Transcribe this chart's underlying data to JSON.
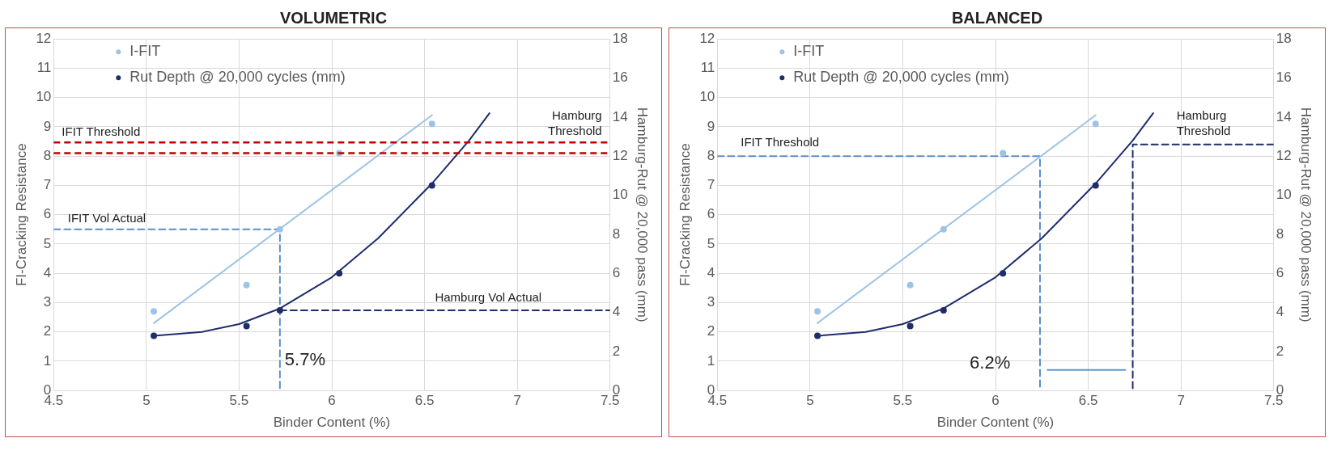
{
  "chart_data": [
    {
      "type": "scatter",
      "title": "VOLUMETRIC",
      "xlabel": "Binder Content (%)",
      "ylabel": "FI-Cracking Resistance",
      "y2label": "Hamburg-Rut @ 20,000 pass (mm)",
      "xlim": [
        4.5,
        7.5
      ],
      "xticks": [
        4.5,
        5,
        5.5,
        6,
        6.5,
        7,
        7.5
      ],
      "ylim": [
        0,
        12
      ],
      "yticks": [
        0,
        1,
        2,
        3,
        4,
        5,
        6,
        7,
        8,
        9,
        10,
        11,
        12
      ],
      "y2lim": [
        0,
        18
      ],
      "y2ticks": [
        0,
        2,
        4,
        6,
        8,
        10,
        12,
        14,
        16,
        18
      ],
      "grid": true,
      "legend": "top left",
      "ref_lines": [
        {
          "axis": "y",
          "value": 8.1,
          "label": "IFIT Threshold",
          "color": "#c00000",
          "line_style": "dashed"
        },
        {
          "axis": "y2",
          "value": 12.7,
          "label": "Hamburg Threshold",
          "color": "#c00000",
          "line_style": "dashed"
        }
      ],
      "annotations": [
        {
          "text": "IFIT Vol Actual",
          "x": 4.55,
          "y": 5.5
        },
        {
          "text": "Hamburg Vol Actual",
          "x": 6.53,
          "y": 2.8
        },
        {
          "text": "5.7%",
          "x": 5.72,
          "y": 0.6
        }
      ],
      "series": [
        {
          "name": "I-FIT",
          "color": "#9dc3e6",
          "marker": "circle",
          "x": [
            5.04,
            5.54,
            5.72,
            6.04,
            6.54
          ],
          "values": [
            2.7,
            3.6,
            5.5,
            8.1,
            9.1
          ]
        },
        {
          "name": "Rut Depth @ 20,000 cycles (mm)",
          "color": "#1f2d6b",
          "marker": "circle",
          "axis": "y2",
          "x": [
            5.04,
            5.54,
            5.72,
            6.04,
            6.54
          ],
          "values": [
            2.8,
            3.3,
            4.1,
            6.0,
            10.5
          ]
        },
        {
          "type": "line",
          "color": "#9dc3e6",
          "marker": "none",
          "x": [
            5.04,
            6.54
          ],
          "values": [
            2.3,
            9.4
          ]
        },
        {
          "type": "line",
          "color": "#1f2d6b",
          "marker": "none",
          "axis": "y2",
          "x": [
            5.04,
            5.3,
            5.5,
            5.72,
            6.0,
            6.25,
            6.54,
            6.74,
            6.85
          ],
          "values": [
            2.8,
            3.0,
            3.4,
            4.2,
            5.8,
            7.8,
            10.6,
            12.8,
            14.2
          ]
        },
        {
          "type": "line",
          "color": "#5b8fc7",
          "marker": "none",
          "line_style": "dashed",
          "x": [
            4.5,
            5.72,
            5.72
          ],
          "values": [
            5.5,
            5.5,
            0
          ]
        },
        {
          "type": "line",
          "color": "#1f2d6b",
          "marker": "none",
          "line_style": "dashed",
          "axis": "y2",
          "x": [
            5.72,
            7.5
          ],
          "values": [
            4.1,
            4.1
          ]
        }
      ]
    },
    {
      "type": "scatter",
      "title": "BALANCED",
      "xlabel": "Binder Content (%)",
      "ylabel": "FI-Cracking Resistance",
      "y2label": "Hamburg-Rut @ 20,000 pass (mm)",
      "xlim": [
        4.5,
        7.5
      ],
      "xticks": [
        4.5,
        5,
        5.5,
        6,
        6.5,
        7,
        7.5
      ],
      "ylim": [
        0,
        12
      ],
      "yticks": [
        0,
        1,
        2,
        3,
        4,
        5,
        6,
        7,
        8,
        9,
        10,
        11,
        12
      ],
      "y2lim": [
        0,
        18
      ],
      "y2ticks": [
        0,
        2,
        4,
        6,
        8,
        10,
        12,
        14,
        16,
        18
      ],
      "grid": true,
      "legend": "top left",
      "annotations": [
        {
          "text": "IFIT Threshold",
          "x": 4.6,
          "y": 8.1
        },
        {
          "text": "Hamburg Threshold",
          "x": 6.95,
          "y": 8.5
        },
        "6.2%"
      ],
      "series": [
        {
          "name": "I-FIT",
          "color": "#9dc3e6",
          "marker": "circle",
          "x": [
            5.04,
            5.54,
            5.72,
            6.04,
            6.54
          ],
          "values": [
            2.7,
            3.6,
            5.5,
            8.1,
            9.1
          ]
        },
        {
          "name": "Rut Depth @ 20,000 cycles (mm)",
          "color": "#1f2d6b",
          "marker": "circle",
          "axis": "y2",
          "x": [
            5.04,
            5.54,
            5.72,
            6.04,
            6.54
          ],
          "values": [
            2.8,
            3.3,
            4.1,
            6.0,
            10.5
          ]
        },
        {
          "type": "line",
          "color": "#9dc3e6",
          "marker": "none",
          "x": [
            5.04,
            6.54
          ],
          "values": [
            2.3,
            9.4
          ]
        },
        {
          "type": "line",
          "color": "#1f2d6b",
          "marker": "none",
          "axis": "y2",
          "x": [
            5.04,
            5.3,
            5.5,
            5.72,
            6.0,
            6.25,
            6.54,
            6.74,
            6.85
          ],
          "values": [
            2.8,
            3.0,
            3.4,
            4.2,
            5.8,
            7.8,
            10.6,
            12.8,
            14.2
          ]
        },
        {
          "type": "line",
          "color": "#5b8fc7",
          "marker": "none",
          "line_style": "dashed",
          "x": [
            4.5,
            6.24,
            6.24
          ],
          "values": [
            8.0,
            8.0,
            0
          ]
        },
        {
          "type": "line",
          "color": "#1f2d6b",
          "marker": "none",
          "line_style": "dashed",
          "axis": "y2",
          "x": [
            7.5,
            6.74,
            6.74
          ],
          "values": [
            12.6,
            12.6,
            0
          ]
        },
        {
          "type": "line",
          "color": "#5b9bd5",
          "marker": "none",
          "x": [
            6.28,
            6.7
          ],
          "values": [
            0.7,
            0.7
          ]
        }
      ]
    }
  ]
}
